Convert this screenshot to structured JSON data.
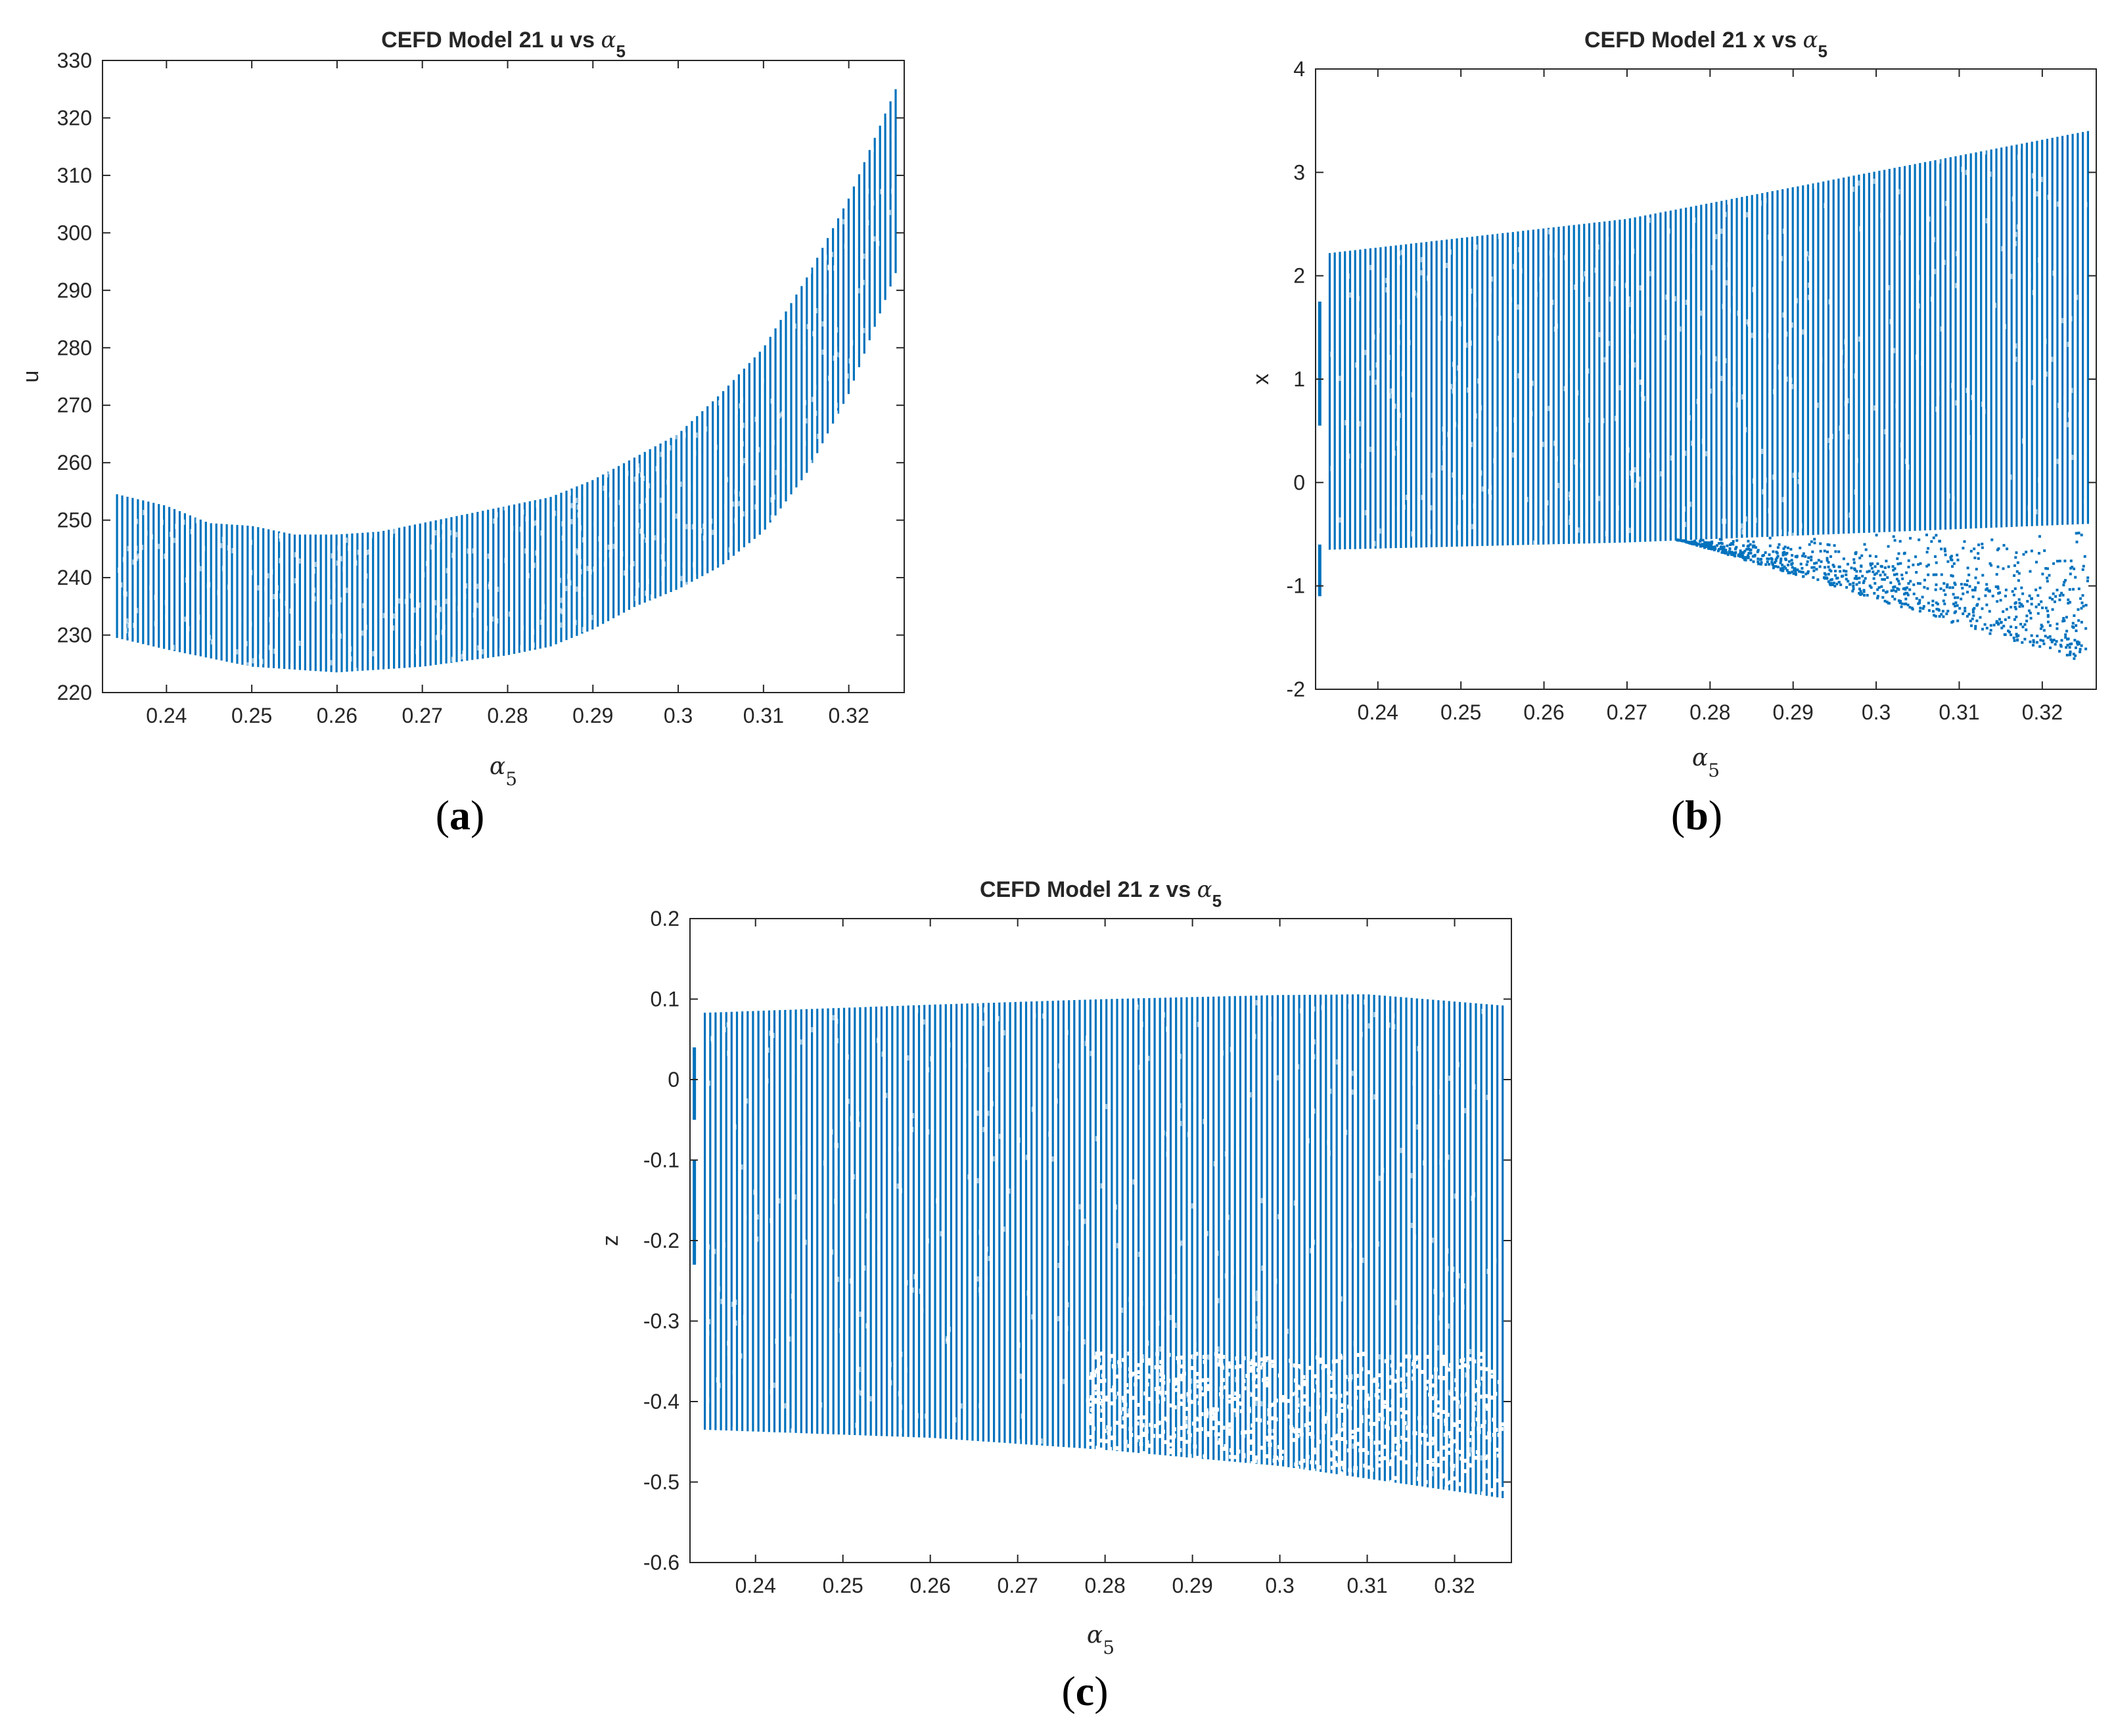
{
  "figure_labels": {
    "a": "a",
    "b": "b",
    "c": "c"
  },
  "colors": {
    "series": "#0072BD",
    "axis": "#262626"
  },
  "chart_data": [
    {
      "id": "a",
      "type": "scatter",
      "title": "CEFD Model 21 u vs α5",
      "title_main": "CEFD Model 21 u vs ",
      "title_sym": "α",
      "title_sub": "5",
      "xlabel": "α",
      "xlabel_sub": "5",
      "ylabel": "u",
      "xlim": [
        0.2325,
        0.3265
      ],
      "ylim": [
        220,
        330
      ],
      "xticks": [
        0.24,
        0.25,
        0.26,
        0.27,
        0.28,
        0.29,
        0.3,
        0.31,
        0.32
      ],
      "xtick_labels": [
        "0.24",
        "0.25",
        "0.26",
        "0.27",
        "0.28",
        "0.29",
        "0.3",
        "0.31",
        "0.32"
      ],
      "yticks": [
        220,
        230,
        240,
        250,
        260,
        270,
        280,
        290,
        300,
        310,
        320,
        330
      ],
      "ytick_labels": [
        "220",
        "230",
        "240",
        "250",
        "260",
        "270",
        "280",
        "290",
        "300",
        "310",
        "320",
        "330"
      ],
      "x_range": [
        0.2342,
        0.3255
      ],
      "lower_envelope": [
        [
          0.2342,
          229.5
        ],
        [
          0.24,
          227.5
        ],
        [
          0.245,
          226
        ],
        [
          0.25,
          224.5
        ],
        [
          0.255,
          224
        ],
        [
          0.26,
          223.5
        ],
        [
          0.265,
          224
        ],
        [
          0.27,
          224.5
        ],
        [
          0.275,
          225.5
        ],
        [
          0.28,
          226.5
        ],
        [
          0.285,
          228
        ],
        [
          0.29,
          231
        ],
        [
          0.295,
          235
        ],
        [
          0.3,
          238
        ],
        [
          0.305,
          242
        ],
        [
          0.31,
          248
        ],
        [
          0.315,
          258
        ],
        [
          0.32,
          272
        ],
        [
          0.3255,
          293
        ]
      ],
      "upper_envelope": [
        [
          0.2342,
          254.5
        ],
        [
          0.24,
          252.5
        ],
        [
          0.245,
          249.5
        ],
        [
          0.25,
          249
        ],
        [
          0.255,
          247.5
        ],
        [
          0.26,
          247.5
        ],
        [
          0.265,
          248
        ],
        [
          0.27,
          249.5
        ],
        [
          0.275,
          251
        ],
        [
          0.28,
          252.5
        ],
        [
          0.285,
          254
        ],
        [
          0.29,
          257
        ],
        [
          0.295,
          261
        ],
        [
          0.3,
          265
        ],
        [
          0.305,
          272
        ],
        [
          0.31,
          280
        ],
        [
          0.315,
          292
        ],
        [
          0.32,
          306
        ],
        [
          0.3255,
          325
        ]
      ]
    },
    {
      "id": "b",
      "type": "scatter",
      "title": "CEFD Model 21 x vs α5",
      "title_main": "CEFD Model 21 x vs ",
      "title_sym": "α",
      "title_sub": "5",
      "xlabel": "α",
      "xlabel_sub": "5",
      "ylabel": "x",
      "xlim": [
        0.2325,
        0.3265
      ],
      "ylim": [
        -2,
        4
      ],
      "xticks": [
        0.24,
        0.25,
        0.26,
        0.27,
        0.28,
        0.29,
        0.3,
        0.31,
        0.32
      ],
      "xtick_labels": [
        "0.24",
        "0.25",
        "0.26",
        "0.27",
        "0.28",
        "0.29",
        "0.3",
        "0.31",
        "0.32"
      ],
      "yticks": [
        -2,
        -1,
        0,
        1,
        2,
        3,
        4
      ],
      "ytick_labels": [
        "-2",
        "-1",
        "0",
        "1",
        "2",
        "3",
        "4"
      ],
      "x_range": [
        0.2342,
        0.3255
      ],
      "lower_envelope": [
        [
          0.2342,
          -0.65
        ],
        [
          0.27,
          -0.58
        ],
        [
          0.3255,
          -0.4
        ]
      ],
      "upper_envelope": [
        [
          0.2342,
          2.22
        ],
        [
          0.27,
          2.55
        ],
        [
          0.3255,
          3.4
        ]
      ],
      "scatter_tail": [
        [
          0.276,
          -0.55
        ],
        [
          0.3255,
          -1.75
        ]
      ],
      "early_segments": [
        [
          0.233,
          0.55,
          1.75
        ],
        [
          0.233,
          -1.1,
          -0.6
        ]
      ]
    },
    {
      "id": "c",
      "type": "scatter",
      "title": "CEFD Model 21 z vs α5",
      "title_main": "CEFD Model 21 z vs ",
      "title_sym": "α",
      "title_sub": "5",
      "xlabel": "α",
      "xlabel_sub": "5",
      "ylabel": "z",
      "xlim": [
        0.2325,
        0.3265
      ],
      "ylim": [
        -0.6,
        0.2
      ],
      "xticks": [
        0.24,
        0.25,
        0.26,
        0.27,
        0.28,
        0.29,
        0.3,
        0.31,
        0.32
      ],
      "xtick_labels": [
        "0.24",
        "0.25",
        "0.26",
        "0.27",
        "0.28",
        "0.29",
        "0.3",
        "0.31",
        "0.32"
      ],
      "yticks": [
        -0.6,
        -0.5,
        -0.4,
        -0.3,
        -0.2,
        -0.1,
        0,
        0.1,
        0.2
      ],
      "ytick_labels": [
        "-0.6",
        "-0.5",
        "-0.4",
        "-0.3",
        "-0.2",
        "-0.1",
        "0",
        "0.1",
        "0.2"
      ],
      "x_range": [
        0.2342,
        0.3255
      ],
      "lower_envelope": [
        [
          0.2342,
          -0.435
        ],
        [
          0.26,
          -0.445
        ],
        [
          0.28,
          -0.46
        ],
        [
          0.3,
          -0.48
        ],
        [
          0.3255,
          -0.52
        ]
      ],
      "upper_envelope": [
        [
          0.2342,
          0.083
        ],
        [
          0.26,
          0.093
        ],
        [
          0.28,
          0.1
        ],
        [
          0.3,
          0.105
        ],
        [
          0.31,
          0.106
        ],
        [
          0.3255,
          0.092
        ]
      ],
      "scatter_band": [
        0.278,
        0.3255,
        -0.34
      ],
      "early_segments": [
        [
          0.233,
          -0.05,
          0.04
        ],
        [
          0.233,
          -0.23,
          -0.1
        ]
      ]
    }
  ]
}
